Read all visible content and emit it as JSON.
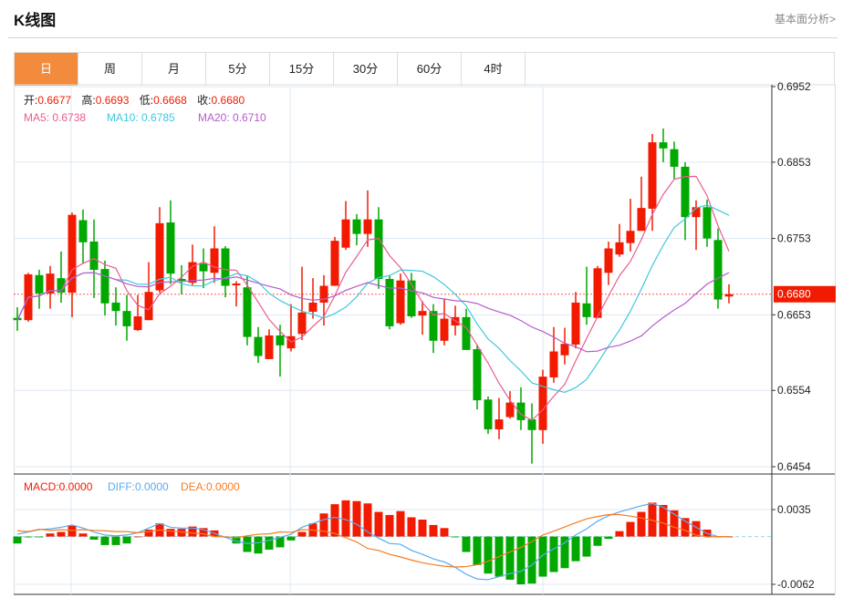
{
  "header": {
    "title": "K线图",
    "link": "基本面分析>"
  },
  "tabs": [
    "日",
    "周",
    "月",
    "5分",
    "15分",
    "30分",
    "60分",
    "4时"
  ],
  "active_tab": 0,
  "ohlc_legend": {
    "open_label": "开:",
    "open": "0.6677",
    "high_label": "高:",
    "high": "0.6693",
    "low_label": "低:",
    "low": "0.6668",
    "close_label": "收:",
    "close": "0.6680"
  },
  "ma_legend": {
    "ma5": "MA5: 0.6738",
    "ma10": "MA10: 0.6785",
    "ma20": "MA20: 0.6710"
  },
  "macd_legend": {
    "macd": "MACD:0.0000",
    "diff": "DIFF:0.0000",
    "dea": "DEA:0.0000"
  },
  "colors": {
    "up": "#f21a00",
    "down": "#00a800",
    "ma5": "#ea5b8f",
    "ma10": "#40c8dc",
    "ma20": "#b65ccb",
    "diff": "#5aabf0",
    "dea": "#f57c22",
    "accent": "#f28c3c"
  },
  "chart_data": {
    "type": "candlestick",
    "price_axis": {
      "ticks": [
        "0.6952",
        "0.6853",
        "0.6753",
        "0.6653",
        "0.6554",
        "0.6454"
      ],
      "range": [
        0.6454,
        0.6952
      ]
    },
    "current_price": "0.6680",
    "macd_axis": {
      "ticks": [
        "0.0035",
        "-0.0062"
      ],
      "range": [
        -0.0062,
        0.0035
      ]
    },
    "candles": [
      [
        0.6649,
        0.6663,
        0.6632,
        0.6646
      ],
      [
        0.6646,
        0.6708,
        0.6644,
        0.6706
      ],
      [
        0.6705,
        0.6712,
        0.6661,
        0.6681
      ],
      [
        0.6681,
        0.6717,
        0.6661,
        0.6707
      ],
      [
        0.6701,
        0.6736,
        0.6669,
        0.6682
      ],
      [
        0.6682,
        0.6787,
        0.665,
        0.6784
      ],
      [
        0.6777,
        0.6791,
        0.672,
        0.6748
      ],
      [
        0.6749,
        0.6778,
        0.6675,
        0.6712
      ],
      [
        0.6713,
        0.6724,
        0.6652,
        0.6668
      ],
      [
        0.6669,
        0.6689,
        0.6639,
        0.6658
      ],
      [
        0.6658,
        0.6679,
        0.6619,
        0.6638
      ],
      [
        0.6633,
        0.6679,
        0.6632,
        0.6651
      ],
      [
        0.6646,
        0.6722,
        0.6646,
        0.6683
      ],
      [
        0.6685,
        0.6794,
        0.6682,
        0.6773
      ],
      [
        0.6774,
        0.6803,
        0.6693,
        0.6707
      ],
      [
        0.67,
        0.6718,
        0.668,
        0.6698
      ],
      [
        0.6695,
        0.6745,
        0.6692,
        0.6722
      ],
      [
        0.672,
        0.674,
        0.6688,
        0.671
      ],
      [
        0.6708,
        0.6769,
        0.6695,
        0.674
      ],
      [
        0.674,
        0.6743,
        0.6676,
        0.6691
      ],
      [
        0.6692,
        0.6697,
        0.6664,
        0.6694
      ],
      [
        0.6689,
        0.6704,
        0.6613,
        0.6624
      ],
      [
        0.6624,
        0.6637,
        0.659,
        0.6599
      ],
      [
        0.6595,
        0.6634,
        0.6595,
        0.6626
      ],
      [
        0.6626,
        0.664,
        0.6572,
        0.6613
      ],
      [
        0.6609,
        0.6667,
        0.6605,
        0.6625
      ],
      [
        0.6628,
        0.6716,
        0.662,
        0.6656
      ],
      [
        0.6657,
        0.6701,
        0.6648,
        0.6669
      ],
      [
        0.6669,
        0.6705,
        0.6639,
        0.6691
      ],
      [
        0.6691,
        0.6755,
        0.6691,
        0.675
      ],
      [
        0.6741,
        0.6802,
        0.6738,
        0.6778
      ],
      [
        0.6778,
        0.6785,
        0.6744,
        0.6759
      ],
      [
        0.6759,
        0.6816,
        0.6742,
        0.6778
      ],
      [
        0.6778,
        0.6794,
        0.6687,
        0.67
      ],
      [
        0.67,
        0.6705,
        0.6634,
        0.6638
      ],
      [
        0.6642,
        0.6707,
        0.664,
        0.6698
      ],
      [
        0.6698,
        0.6708,
        0.6649,
        0.6651
      ],
      [
        0.6652,
        0.6671,
        0.6627,
        0.6658
      ],
      [
        0.6658,
        0.6667,
        0.6603,
        0.6619
      ],
      [
        0.6619,
        0.6674,
        0.6613,
        0.6648
      ],
      [
        0.6639,
        0.6665,
        0.6626,
        0.665
      ],
      [
        0.665,
        0.6661,
        0.6607,
        0.6607
      ],
      [
        0.6608,
        0.6614,
        0.6529,
        0.6541
      ],
      [
        0.6542,
        0.6546,
        0.6497,
        0.6503
      ],
      [
        0.6503,
        0.6544,
        0.649,
        0.6516
      ],
      [
        0.6519,
        0.6553,
        0.6517,
        0.6538
      ],
      [
        0.6538,
        0.6558,
        0.6502,
        0.6515
      ],
      [
        0.6516,
        0.6537,
        0.6458,
        0.6502
      ],
      [
        0.6502,
        0.6581,
        0.6484,
        0.6572
      ],
      [
        0.6571,
        0.6637,
        0.6564,
        0.6605
      ],
      [
        0.66,
        0.6636,
        0.6588,
        0.6615
      ],
      [
        0.6614,
        0.6683,
        0.6609,
        0.6669
      ],
      [
        0.6668,
        0.6716,
        0.664,
        0.665
      ],
      [
        0.6649,
        0.6717,
        0.6649,
        0.6714
      ],
      [
        0.6708,
        0.6749,
        0.6692,
        0.674
      ],
      [
        0.6732,
        0.6772,
        0.6729,
        0.6748
      ],
      [
        0.6747,
        0.6805,
        0.6736,
        0.6763
      ],
      [
        0.6763,
        0.6834,
        0.6763,
        0.6793
      ],
      [
        0.6792,
        0.689,
        0.6763,
        0.6879
      ],
      [
        0.6879,
        0.6897,
        0.6853,
        0.6871
      ],
      [
        0.687,
        0.688,
        0.6831,
        0.6847
      ],
      [
        0.6847,
        0.6853,
        0.6751,
        0.6781
      ],
      [
        0.6781,
        0.6803,
        0.6738,
        0.6794
      ],
      [
        0.6794,
        0.6804,
        0.6742,
        0.6753
      ],
      [
        0.6751,
        0.6766,
        0.6661,
        0.6673
      ],
      [
        0.6677,
        0.6693,
        0.6668,
        0.668
      ]
    ],
    "macd": [
      -0.0009,
      -0.0001,
      -0.0001,
      0.0004,
      0.0006,
      0.0014,
      0.0004,
      -0.0004,
      -0.0011,
      -0.0011,
      -0.0009,
      0.0,
      0.0009,
      0.0017,
      0.001,
      0.001,
      0.0013,
      0.0011,
      0.0008,
      -0.0001,
      -0.0009,
      -0.002,
      -0.0022,
      -0.0017,
      -0.0014,
      -0.0005,
      0.0006,
      0.0017,
      0.003,
      0.0042,
      0.0047,
      0.0046,
      0.0043,
      0.0032,
      0.0028,
      0.0033,
      0.0025,
      0.0022,
      0.0015,
      0.0011,
      -0.0001,
      -0.002,
      -0.0037,
      -0.0048,
      -0.0052,
      -0.0056,
      -0.0062,
      -0.0061,
      -0.0052,
      -0.0046,
      -0.0041,
      -0.0032,
      -0.0026,
      -0.0012,
      -0.0003,
      0.0007,
      0.0019,
      0.0032,
      0.0044,
      0.0041,
      0.0034,
      0.0024,
      0.002,
      0.0009,
      0.0,
      0.0
    ],
    "diff": [
      0.0003,
      0.0006,
      0.0009,
      0.001,
      0.0012,
      0.0015,
      0.0011,
      0.0006,
      0.0002,
      0.0001,
      0.0002,
      0.0005,
      0.0011,
      0.0017,
      0.0012,
      0.0011,
      0.0011,
      0.0009,
      0.0004,
      -0.0001,
      -0.0006,
      -0.0009,
      -0.0008,
      -0.0005,
      -0.0001,
      0.0003,
      0.0012,
      0.0017,
      0.0022,
      0.0025,
      0.0022,
      0.0016,
      0.0006,
      -0.0002,
      -0.0009,
      -0.001,
      -0.0018,
      -0.0023,
      -0.0029,
      -0.0033,
      -0.004,
      -0.0049,
      -0.0055,
      -0.0056,
      -0.0052,
      -0.0048,
      -0.0045,
      -0.0037,
      -0.0024,
      -0.0016,
      -0.0008,
      0.0002,
      0.001,
      0.002,
      0.0027,
      0.0032,
      0.0036,
      0.004,
      0.0043,
      0.0038,
      0.0029,
      0.002,
      0.0012,
      0.0004,
      0.0,
      0.0
    ]
  }
}
